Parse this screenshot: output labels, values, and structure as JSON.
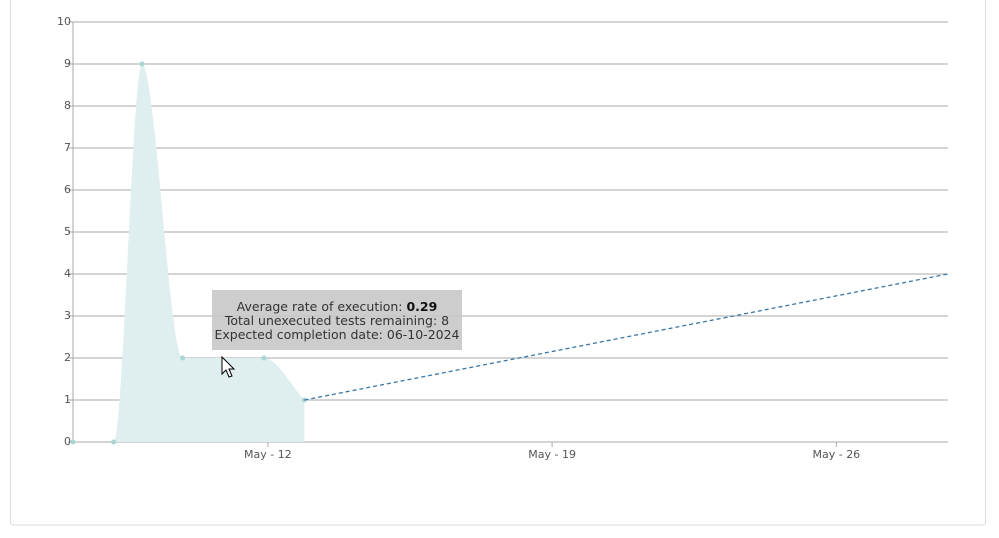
{
  "chart_data": {
    "type": "area",
    "x": [
      7.2,
      8.2,
      8.9,
      9.9,
      11.9,
      12.9
    ],
    "values": [
      0,
      0,
      9,
      2,
      2,
      1
    ],
    "color": "#dfeeee",
    "point_color": "#a9d6d3",
    "projection": {
      "x": [
        12.9,
        28.75
      ],
      "values": [
        1,
        4
      ],
      "color": "#3a77a6"
    },
    "xlim": [
      7.2,
      28.75
    ],
    "xticks": [
      {
        "value": 12,
        "label": "May - 12"
      },
      {
        "value": 19,
        "label": "May - 19"
      },
      {
        "value": 26,
        "label": "May - 26"
      }
    ],
    "ylim": [
      0,
      10
    ],
    "yticks": [
      0,
      1,
      2,
      3,
      4,
      5,
      6,
      7,
      8,
      9,
      10
    ],
    "grid": true,
    "tooltip": {
      "rate_label": "Average rate of execution:",
      "rate": "0.29",
      "remaining": "Total unexecuted tests remaining: 8",
      "completion": "Expected completion date: 06-10-2024"
    }
  }
}
